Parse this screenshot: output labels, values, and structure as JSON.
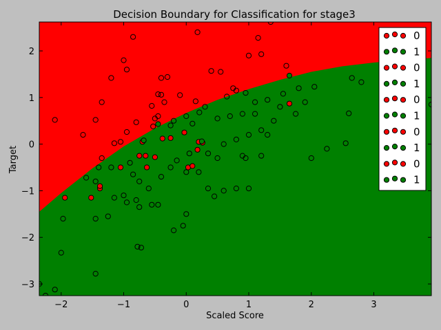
{
  "chart_data": {
    "type": "scatter",
    "title": "Decision Boundary for Classification for stage3",
    "xlabel": "Scaled Score",
    "ylabel": "Target",
    "xlim": [
      -2.35,
      3.92
    ],
    "ylim": [
      -3.25,
      2.62
    ],
    "x_ticks": [
      -2,
      -1,
      0,
      1,
      2,
      3
    ],
    "y_ticks": [
      -3,
      -2,
      -1,
      0,
      1,
      2
    ],
    "grid": false,
    "legend_position": "top-right",
    "colors": {
      "class_0": "#ff0000",
      "class_1": "#008000",
      "background": "#bfbfbf",
      "edge": "#000000"
    },
    "boundary": {
      "description_note": "",
      "points": [
        [
          -2.35,
          -1.45
        ],
        [
          -2.0,
          -1.05
        ],
        [
          -1.5,
          -0.52
        ],
        [
          -1.0,
          -0.05
        ],
        [
          -0.5,
          0.34
        ],
        [
          0.0,
          0.67
        ],
        [
          0.5,
          0.95
        ],
        [
          1.0,
          1.18
        ],
        [
          1.5,
          1.38
        ],
        [
          2.0,
          1.55
        ],
        [
          2.5,
          1.67
        ],
        [
          3.0,
          1.75
        ],
        [
          3.5,
          1.81
        ],
        [
          3.92,
          1.85
        ]
      ]
    },
    "legend": [
      {
        "label": "0",
        "class": 0
      },
      {
        "label": "1",
        "class": 1
      },
      {
        "label": "0",
        "class": 0
      },
      {
        "label": "1",
        "class": 1
      },
      {
        "label": "0",
        "class": 0
      },
      {
        "label": "1",
        "class": 1
      },
      {
        "label": "0",
        "class": 0
      },
      {
        "label": "1",
        "class": 1
      },
      {
        "label": "0",
        "class": 0
      },
      {
        "label": "1",
        "class": 1
      }
    ],
    "series": [
      {
        "class": 0,
        "points": [
          [
            -1.94,
            -1.15
          ],
          [
            -1.52,
            -1.15
          ],
          [
            -1.38,
            -0.95
          ],
          [
            -1.38,
            -0.9
          ],
          [
            -1.05,
            -0.5
          ],
          [
            -0.75,
            -0.25
          ],
          [
            -0.65,
            -0.25
          ],
          [
            -0.63,
            -0.5
          ],
          [
            -0.5,
            -0.28
          ],
          [
            -0.7,
            0.05
          ],
          [
            -0.53,
            0.38
          ],
          [
            -0.38,
            0.12
          ],
          [
            -0.25,
            0.13
          ],
          [
            -0.03,
            0.25
          ],
          [
            0.03,
            -0.5
          ],
          [
            0.1,
            -0.47
          ],
          [
            0.18,
            -0.12
          ],
          [
            0.2,
            0.05
          ],
          [
            0.26,
            0.03
          ],
          [
            1.65,
            0.87
          ]
        ]
      },
      {
        "class": 1,
        "points": [
          [
            -0.25,
            0.4
          ],
          [
            0.25,
            0.06
          ],
          [
            -0.68,
            0.08
          ],
          [
            -0.45,
            0.43
          ],
          [
            0.1,
            0.44
          ],
          [
            0.21,
            0.68
          ],
          [
            0.95,
            1.1
          ],
          [
            1.65,
            1.47
          ],
          [
            -1.45,
            -0.8
          ]
        ]
      },
      {
        "class": "outline",
        "points": [
          [
            -2.1,
            0.52
          ],
          [
            -1.65,
            0.2
          ],
          [
            -1.6,
            -0.72
          ],
          [
            -1.45,
            0.52
          ],
          [
            -1.35,
            0.9
          ],
          [
            -1.2,
            1.42
          ],
          [
            -1.0,
            1.8
          ],
          [
            -0.95,
            1.6
          ],
          [
            -0.85,
            2.3
          ],
          [
            -0.4,
            1.42
          ],
          [
            -0.3,
            1.44
          ],
          [
            -0.45,
            1.07
          ],
          [
            -0.4,
            1.06
          ],
          [
            -0.55,
            0.82
          ],
          [
            -0.5,
            0.55
          ],
          [
            -0.45,
            0.6
          ],
          [
            -0.35,
            0.9
          ],
          [
            -0.1,
            1.05
          ],
          [
            0.15,
            0.92
          ],
          [
            0.18,
            2.4
          ],
          [
            0.4,
            1.57
          ],
          [
            0.55,
            1.55
          ],
          [
            0.65,
            1.02
          ],
          [
            0.75,
            1.2
          ],
          [
            0.8,
            1.15
          ],
          [
            1.0,
            1.9
          ],
          [
            1.15,
            2.28
          ],
          [
            1.2,
            1.93
          ],
          [
            1.35,
            2.62
          ],
          [
            1.55,
            1.08
          ],
          [
            1.6,
            1.68
          ],
          [
            1.8,
            1.2
          ],
          [
            2.05,
            1.23
          ],
          [
            1.3,
            0.95
          ],
          [
            1.1,
            0.9
          ],
          [
            0.9,
            0.65
          ],
          [
            0.7,
            0.6
          ],
          [
            0.5,
            0.55
          ],
          [
            0.3,
            0.8
          ],
          [
            0.0,
            0.6
          ],
          [
            -0.2,
            0.5
          ],
          [
            -0.8,
            0.47
          ],
          [
            -0.95,
            0.26
          ],
          [
            -1.05,
            0.05
          ],
          [
            -1.15,
            0.02
          ],
          [
            -1.35,
            -0.3
          ],
          [
            -1.4,
            -0.5
          ],
          [
            -1.2,
            -0.5
          ],
          [
            -0.9,
            -0.4
          ],
          [
            -0.85,
            -0.65
          ],
          [
            -0.75,
            -0.8
          ],
          [
            -0.6,
            -0.95
          ],
          [
            -0.4,
            -0.7
          ],
          [
            -0.25,
            -0.5
          ],
          [
            -0.15,
            -0.35
          ],
          [
            0.05,
            -0.2
          ],
          [
            0.0,
            -0.6
          ],
          [
            0.2,
            -0.6
          ],
          [
            0.35,
            -0.2
          ],
          [
            0.5,
            -0.3
          ],
          [
            0.6,
            0.0
          ],
          [
            0.8,
            0.1
          ],
          [
            1.0,
            0.2
          ],
          [
            1.2,
            0.3
          ],
          [
            1.4,
            0.5
          ],
          [
            1.2,
            -0.25
          ],
          [
            1.0,
            -0.95
          ],
          [
            0.8,
            -0.95
          ],
          [
            0.6,
            -1.0
          ],
          [
            0.35,
            -0.95
          ],
          [
            0.45,
            -1.12
          ],
          [
            0.0,
            -1.5
          ],
          [
            -0.05,
            -1.75
          ],
          [
            -0.2,
            -1.85
          ],
          [
            -0.45,
            -1.3
          ],
          [
            -0.55,
            -1.3
          ],
          [
            -0.75,
            -1.35
          ],
          [
            -0.8,
            -1.2
          ],
          [
            -0.95,
            -1.25
          ],
          [
            -1.0,
            -1.1
          ],
          [
            -1.15,
            -1.15
          ],
          [
            -1.25,
            -1.55
          ],
          [
            -1.45,
            -1.6
          ],
          [
            -1.45,
            -2.78
          ],
          [
            -1.97,
            -1.6
          ],
          [
            -2.0,
            -2.33
          ],
          [
            -2.1,
            -3.12
          ],
          [
            -2.25,
            -3.25
          ],
          [
            -2.35,
            -3.0
          ],
          [
            -0.72,
            -2.22
          ],
          [
            -0.78,
            -2.2
          ],
          [
            2.0,
            -0.3
          ],
          [
            2.25,
            -0.1
          ],
          [
            2.55,
            0.02
          ],
          [
            2.6,
            0.66
          ],
          [
            2.65,
            1.42
          ],
          [
            2.8,
            1.33
          ],
          [
            3.92,
            0.85
          ],
          [
            1.9,
            0.9
          ],
          [
            1.75,
            0.65
          ],
          [
            0.9,
            -0.25
          ],
          [
            0.95,
            -0.3
          ],
          [
            1.3,
            0.2
          ],
          [
            1.5,
            0.8
          ],
          [
            1.1,
            0.65
          ]
        ]
      }
    ]
  }
}
